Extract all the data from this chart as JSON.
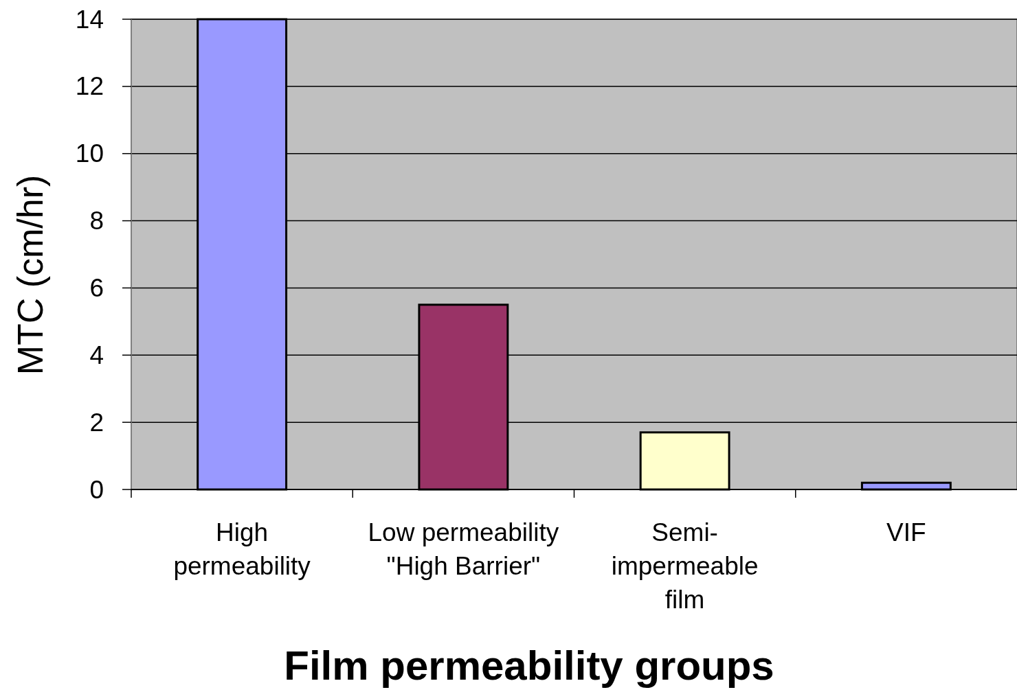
{
  "chart_data": {
    "type": "bar",
    "xlabel": "Film permeability groups",
    "ylabel": "MTC (cm/hr)",
    "categories": [
      "High\npermeability",
      "Low permeability\n\"High Barrier\"",
      "Semi-\nimpermeable\nfilm",
      "VIF"
    ],
    "values": [
      14,
      5.5,
      1.7,
      0.2
    ],
    "colors": [
      "#9999ff",
      "#993366",
      "#ffffcc",
      "#9999ff"
    ],
    "ylim": [
      0,
      14
    ],
    "yticks": [
      0,
      2,
      4,
      6,
      8,
      10,
      12,
      14
    ],
    "grid": "y"
  }
}
